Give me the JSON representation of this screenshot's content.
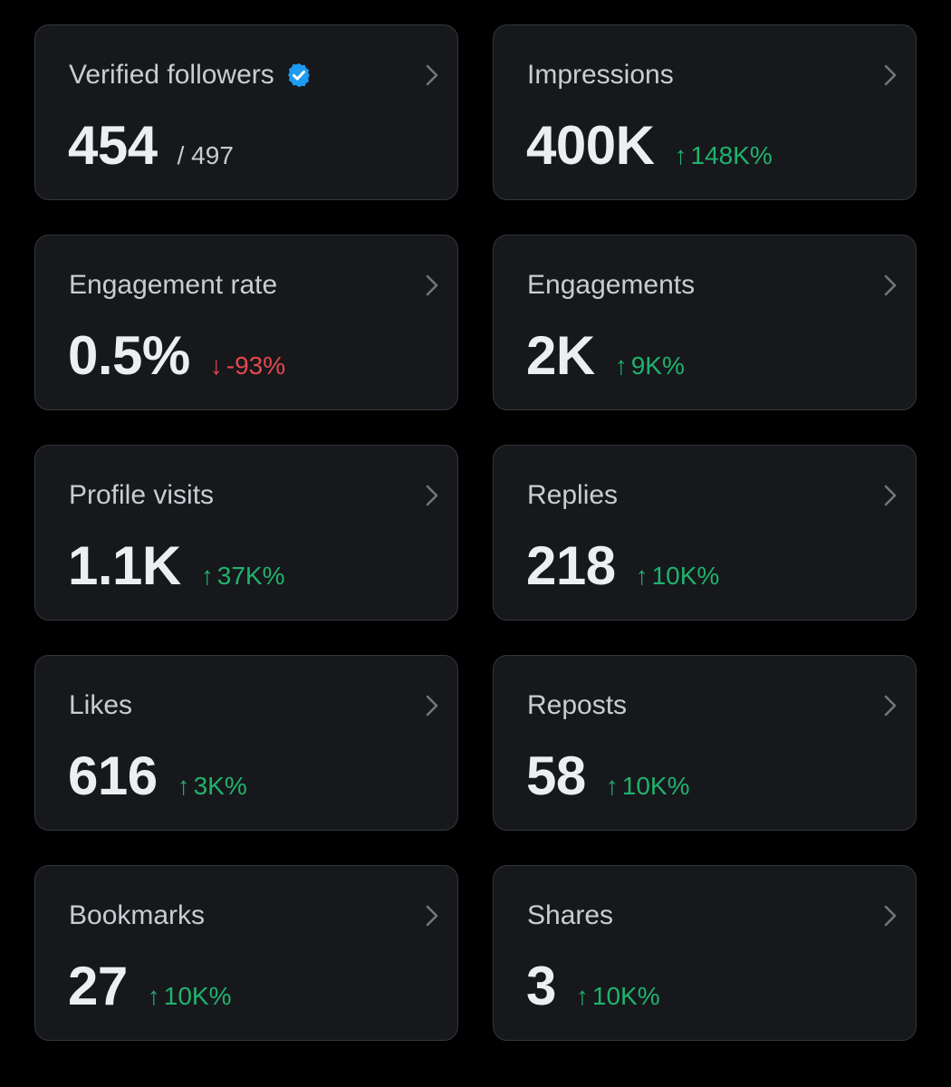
{
  "colors": {
    "up": "#20b26c",
    "down": "#e5484d",
    "verified": "#1d9bf0"
  },
  "cards": [
    {
      "label": "Verified followers",
      "value": "454",
      "sub": "/ 497"
    },
    {
      "label": "Impressions",
      "value": "400K",
      "change": "148K%",
      "dir": "up"
    },
    {
      "label": "Engagement rate",
      "value": "0.5%",
      "change": "-93%",
      "dir": "down"
    },
    {
      "label": "Engagements",
      "value": "2K",
      "change": "9K%",
      "dir": "up"
    },
    {
      "label": "Profile visits",
      "value": "1.1K",
      "change": "37K%",
      "dir": "up"
    },
    {
      "label": "Replies",
      "value": "218",
      "change": "10K%",
      "dir": "up"
    },
    {
      "label": "Likes",
      "value": "616",
      "change": "3K%",
      "dir": "up"
    },
    {
      "label": "Reposts",
      "value": "58",
      "change": "10K%",
      "dir": "up"
    },
    {
      "label": "Bookmarks",
      "value": "27",
      "change": "10K%",
      "dir": "up"
    },
    {
      "label": "Shares",
      "value": "3",
      "change": "10K%",
      "dir": "up"
    }
  ]
}
